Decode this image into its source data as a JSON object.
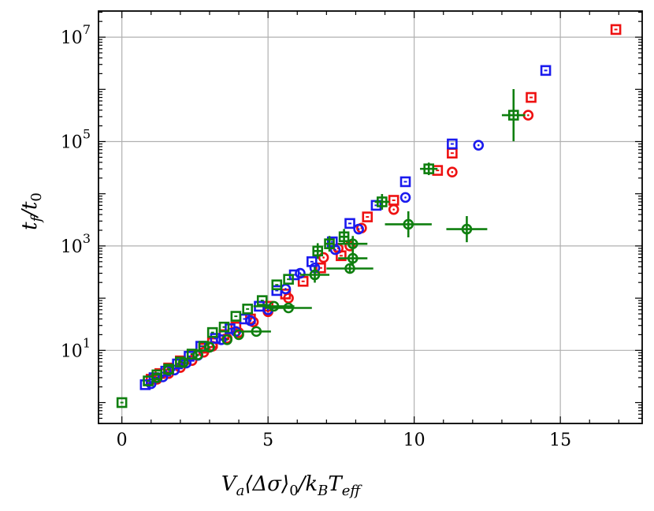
{
  "chart_data": {
    "type": "scatter",
    "title": "",
    "xlabel": "V_a⟨Δσ⟩_0/k_B T_eff",
    "ylabel": "t_f/t_0",
    "xlim": [
      -0.8,
      17.8
    ],
    "ylim_log10": [
      -0.4,
      7.5
    ],
    "yscale": "log",
    "grid": true,
    "x_ticks": [
      0,
      5,
      10,
      15
    ],
    "y_ticks": [
      {
        "value": 10,
        "label": "10",
        "exp": "1"
      },
      {
        "value": 1000,
        "label": "10",
        "exp": "3"
      },
      {
        "value": 100000,
        "label": "10",
        "exp": "5"
      },
      {
        "value": 10000000,
        "label": "10",
        "exp": "7"
      }
    ],
    "colors": {
      "red": "#ee1111",
      "blue": "#1a1aee",
      "green": "#0f7f0f"
    },
    "series": [
      {
        "name": "red-squares",
        "color": "red",
        "marker": "square",
        "points": [
          [
            1.0,
            2.8
          ],
          [
            1.3,
            3.6
          ],
          [
            1.6,
            4.6
          ],
          [
            2.0,
            6.3
          ],
          [
            2.4,
            8.2
          ],
          [
            2.8,
            11
          ],
          [
            3.1,
            14
          ],
          [
            3.5,
            20
          ],
          [
            3.9,
            28
          ],
          [
            4.4,
            40
          ],
          [
            5.0,
            70
          ],
          [
            5.6,
            120
          ],
          [
            6.2,
            210
          ],
          [
            6.8,
            380
          ],
          [
            7.5,
            650
          ],
          [
            8.4,
            3600
          ],
          [
            9.3,
            7500
          ],
          [
            10.8,
            28000
          ],
          [
            11.3,
            60000
          ],
          [
            14.0,
            700000
          ],
          [
            16.9,
            14000000
          ]
        ]
      },
      {
        "name": "red-circles",
        "color": "red",
        "marker": "circle",
        "points": [
          [
            1.2,
            2.8
          ],
          [
            1.6,
            3.6
          ],
          [
            2.0,
            4.7
          ],
          [
            2.4,
            6.4
          ],
          [
            2.8,
            9.2
          ],
          [
            3.1,
            12
          ],
          [
            3.6,
            17
          ],
          [
            4.0,
            22
          ],
          [
            4.5,
            35
          ],
          [
            5.0,
            55
          ],
          [
            5.7,
            100
          ],
          [
            6.9,
            600
          ],
          [
            7.4,
            900
          ],
          [
            7.8,
            1000
          ],
          [
            8.2,
            2200
          ],
          [
            9.3,
            5000
          ],
          [
            11.3,
            26000
          ],
          [
            13.9,
            320000
          ]
        ]
      },
      {
        "name": "blue-squares",
        "color": "blue",
        "marker": "square",
        "points": [
          [
            0.8,
            2.2
          ],
          [
            1.1,
            3.0
          ],
          [
            1.5,
            4.0
          ],
          [
            1.9,
            5.5
          ],
          [
            2.3,
            7.7
          ],
          [
            2.7,
            12
          ],
          [
            3.2,
            17
          ],
          [
            3.7,
            26
          ],
          [
            4.2,
            40
          ],
          [
            4.7,
            70
          ],
          [
            5.3,
            140
          ],
          [
            5.9,
            280
          ],
          [
            6.5,
            500
          ],
          [
            7.2,
            1200
          ],
          [
            7.8,
            2700
          ],
          [
            8.7,
            6000
          ],
          [
            9.7,
            17000
          ],
          [
            11.3,
            90000
          ],
          [
            14.5,
            2300000
          ]
        ]
      },
      {
        "name": "blue-circles",
        "color": "blue",
        "marker": "circle",
        "points": [
          [
            1.0,
            2.3
          ],
          [
            1.4,
            3.1
          ],
          [
            1.8,
            4.2
          ],
          [
            2.2,
            5.7
          ],
          [
            2.6,
            8.0
          ],
          [
            3.0,
            11.5
          ],
          [
            3.4,
            16
          ],
          [
            3.9,
            23
          ],
          [
            4.4,
            37
          ],
          [
            5.0,
            60
          ],
          [
            5.6,
            150
          ],
          [
            6.1,
            300
          ],
          [
            6.6,
            380
          ],
          [
            7.3,
            850
          ],
          [
            8.1,
            2100
          ],
          [
            9.7,
            8500
          ],
          [
            12.2,
            85000
          ]
        ]
      },
      {
        "name": "green-squares",
        "color": "green",
        "marker": "square",
        "points": [
          [
            0.0,
            1.0
          ],
          [
            0.9,
            2.6
          ],
          [
            1.2,
            3.4
          ],
          [
            1.6,
            4.4
          ],
          [
            2.0,
            6.0
          ],
          [
            2.4,
            8.5
          ],
          [
            2.8,
            12
          ],
          [
            3.1,
            22
          ],
          [
            3.5,
            28
          ],
          [
            3.9,
            45
          ],
          [
            4.3,
            62
          ],
          [
            4.8,
            90
          ],
          [
            5.3,
            180
          ],
          [
            5.7,
            230
          ],
          [
            6.7,
            800
          ],
          [
            7.1,
            1100
          ],
          [
            7.6,
            1500
          ],
          [
            8.9,
            7000
          ],
          [
            10.5,
            30000
          ],
          [
            13.4,
            320000
          ]
        ],
        "xerr": [
          0,
          0,
          0,
          0,
          0,
          0,
          0,
          0,
          0,
          0,
          0,
          0,
          0,
          0,
          0.15,
          0.15,
          0.15,
          0.25,
          0.3,
          0.4
        ],
        "yerr_log": [
          0,
          0,
          0,
          0,
          0,
          0,
          0,
          0,
          0,
          0,
          0,
          0,
          0,
          0,
          0.15,
          0.15,
          0.15,
          0.15,
          0.12,
          0.5
        ]
      },
      {
        "name": "green-circles",
        "color": "green",
        "marker": "circle",
        "points": [
          [
            1.2,
            3.0
          ],
          [
            1.6,
            4.2
          ],
          [
            2.1,
            5.8
          ],
          [
            2.6,
            8.2
          ],
          [
            3.0,
            11.5
          ],
          [
            3.6,
            16
          ],
          [
            4.0,
            20
          ],
          [
            4.6,
            23
          ],
          [
            5.2,
            70
          ],
          [
            5.7,
            65
          ],
          [
            6.6,
            280
          ],
          [
            7.9,
            1100
          ],
          [
            7.9,
            580
          ],
          [
            9.8,
            2600
          ],
          [
            11.8,
            2100
          ],
          [
            7.8,
            370
          ]
        ],
        "xerr": [
          0,
          0,
          0,
          0,
          0,
          0,
          0,
          0.5,
          0.7,
          0.8,
          0.5,
          0.5,
          0.5,
          0.8,
          0.7,
          0.8
        ],
        "yerr_log": [
          0,
          0,
          0,
          0,
          0,
          0,
          0,
          0,
          0,
          0,
          0.15,
          0.15,
          0.15,
          0.25,
          0.25,
          0.1
        ]
      }
    ]
  }
}
